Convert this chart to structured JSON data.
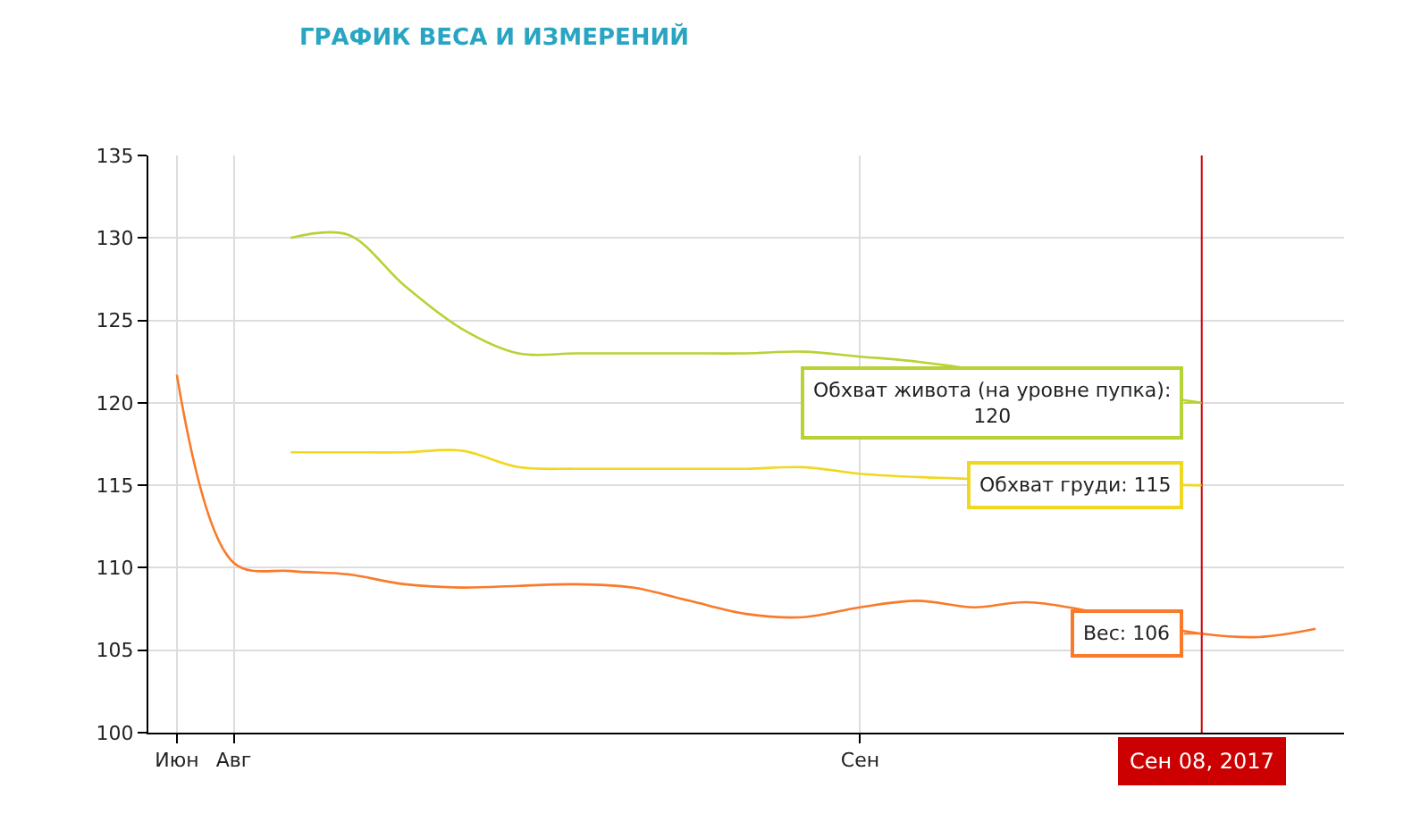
{
  "chart_data": {
    "type": "line",
    "title": "ГРАФИК ВЕСА И ИЗМЕРЕНИЙ",
    "categories": [
      "Июн",
      "Авг",
      null,
      null,
      null,
      null,
      null,
      null,
      null,
      null,
      null,
      null,
      "Сен",
      null,
      null,
      null,
      null,
      null,
      null,
      null,
      null
    ],
    "ylim": [
      100,
      135
    ],
    "yticks": [
      100,
      105,
      110,
      115,
      120,
      125,
      130,
      135
    ],
    "grid": true,
    "marker": "none",
    "line_style": "solid",
    "series": [
      {
        "color": "#b5d334",
        "values": [
          null,
          null,
          130,
          130.2,
          127.1,
          124.5,
          123,
          123,
          123,
          123,
          123,
          123.1,
          122.8,
          122.5,
          null,
          null,
          null,
          null,
          120,
          null,
          null
        ]
      },
      {
        "color": "#f0d820",
        "values": [
          null,
          null,
          117,
          117,
          117,
          117.1,
          116.1,
          116,
          116,
          116,
          116,
          116.1,
          115.7,
          115.5,
          null,
          null,
          null,
          null,
          115,
          null,
          null
        ]
      },
      {
        "color": "#f97a2a",
        "values": [
          121.7,
          110.3,
          109.8,
          109.6,
          109,
          108.8,
          108.9,
          109,
          108.8,
          108,
          107.2,
          107,
          107.6,
          108,
          107.6,
          107.9,
          null,
          null,
          106,
          105.8,
          106.3
        ]
      }
    ],
    "annotations": [
      "Обхват живота (на уровне пупка):\n120",
      "Обхват груди: 115",
      "Вес: 106",
      "Сен 08, 2017"
    ]
  }
}
